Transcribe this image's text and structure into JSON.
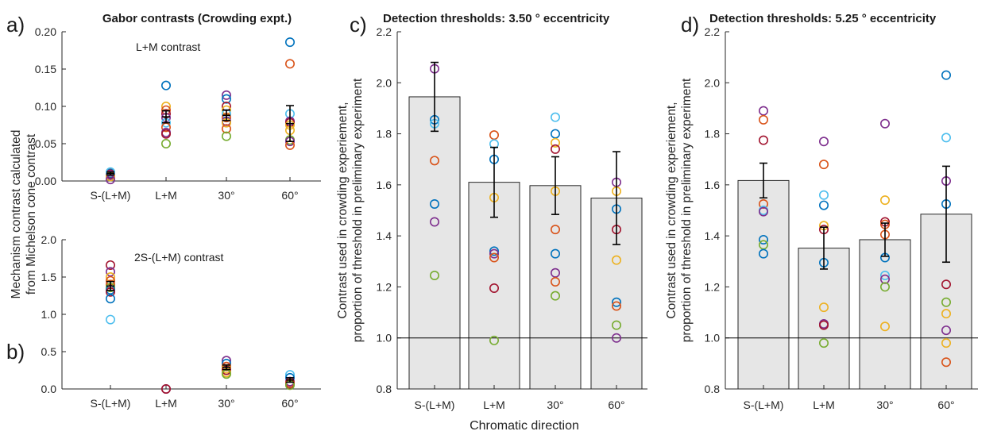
{
  "colors": {
    "c1": "#0072bd",
    "c2": "#d95319",
    "c3": "#edb120",
    "c4": "#7e2f8e",
    "c5": "#77ac30",
    "c6": "#4dbeee",
    "c7": "#a2142f",
    "bar": "#e6e6e6"
  },
  "figure": {
    "panel_a_letter": "a)",
    "panel_b_letter": "b)",
    "panel_c_letter": "c)",
    "panel_d_letter": "d)",
    "panel_ab_title": "Gabor contrasts (Crowding expt.)",
    "panel_ab_ylabel_line1": "Mechanism contrast calculated",
    "panel_ab_ylabel_line2": "from Michelson cone contrast",
    "panel_a_annotation": "L+M contrast",
    "panel_b_annotation": "2S-(L+M) contrast",
    "panel_cd_ylabel_line1": "Contrast used in crowding experiement,",
    "panel_cd_ylabel_line2": "proportion of threshold in preliminary experiment",
    "panel_cd_xlabel": "Chromatic direction"
  },
  "chart_data": [
    {
      "id": "a",
      "type": "scatter",
      "title": "Gabor contrasts (Crowding expt.)",
      "annotation": "L+M contrast",
      "categories": [
        "S-(L+M)",
        "L+M",
        "30°",
        "60°"
      ],
      "ylim": [
        0,
        0.2
      ],
      "yticks": [
        "0.00",
        "0.05",
        "0.10",
        "0.15",
        "0.20"
      ],
      "points": [
        [
          0.011,
          0.01,
          0.009,
          0.008,
          0.006,
          0.012,
          0.002
        ],
        [
          0.128,
          0.1,
          0.095,
          0.09,
          0.085,
          0.078,
          0.072,
          0.065,
          0.063,
          0.05
        ],
        [
          0.115,
          0.11,
          0.1,
          0.095,
          0.09,
          0.085,
          0.08,
          0.078,
          0.07,
          0.06
        ],
        [
          0.186,
          0.157,
          0.09,
          0.08,
          0.078,
          0.075,
          0.055,
          0.053,
          0.048,
          0.068
        ]
      ],
      "point_colors": [
        [
          "c2",
          "c1",
          "c7",
          "c4",
          "c3",
          "c6",
          "c4"
        ],
        [
          "c1",
          "c3",
          "c2",
          "c7",
          "c4",
          "c6",
          "c2",
          "c4",
          "c7",
          "c5"
        ],
        [
          "c4",
          "c1",
          "c7",
          "c3",
          "c6",
          "c2",
          "c4",
          "c3",
          "c2",
          "c5"
        ],
        [
          "c1",
          "c2",
          "c6",
          "c4",
          "c7",
          "c3",
          "c5",
          "c4",
          "c2",
          "c3"
        ]
      ],
      "means": [
        0.01,
        0.086,
        0.088,
        0.077
      ],
      "errors": [
        0.002,
        0.008,
        0.007,
        0.024
      ]
    },
    {
      "id": "b",
      "type": "scatter",
      "annotation": "2S-(L+M) contrast",
      "categories": [
        "S-(L+M)",
        "L+M",
        "30°",
        "60°"
      ],
      "ylim": [
        0,
        2
      ],
      "yticks": [
        "0.0",
        "0.5",
        "1.0",
        "1.5",
        "2.0"
      ],
      "points": [
        [
          1.66,
          1.57,
          1.5,
          1.45,
          1.4,
          1.36,
          1.33,
          1.3,
          1.21,
          0.93
        ],
        [
          0.0,
          0.0
        ],
        [
          0.38,
          0.34,
          0.3,
          0.27,
          0.25,
          0.22,
          0.2
        ],
        [
          0.19,
          0.15,
          0.1,
          0.08,
          0.06,
          0.05
        ]
      ],
      "point_colors": [
        [
          "c7",
          "c4",
          "c3",
          "c2",
          "c2",
          "c5",
          "c1",
          "c7",
          "c1",
          "c6"
        ],
        [
          "c4",
          "c7"
        ],
        [
          "c4",
          "c1",
          "c2",
          "c3",
          "c7",
          "c3",
          "c5"
        ],
        [
          "c6",
          "c1",
          "c4",
          "c2",
          "c7",
          "c5"
        ]
      ],
      "means": [
        1.38,
        0.0,
        0.29,
        0.12
      ],
      "errors": [
        0.06,
        0.0,
        0.03,
        0.03
      ]
    },
    {
      "id": "c",
      "type": "bar",
      "title": "Detection thresholds: 3.50 ° eccentricity",
      "xlabel": "Chromatic direction",
      "categories": [
        "S-(L+M)",
        "L+M",
        "30°",
        "60°"
      ],
      "ylim": [
        0.8,
        2.2
      ],
      "yticks": [
        "0.8",
        "1.0",
        "1.2",
        "1.4",
        "1.6",
        "1.8",
        "2.0",
        "2.2"
      ],
      "refline": 1.0,
      "values": [
        1.945,
        1.61,
        1.597,
        1.548
      ],
      "errors": [
        0.135,
        0.137,
        0.113,
        0.182
      ],
      "points": [
        [
          2.055,
          1.855,
          1.84,
          1.695,
          1.525,
          1.455,
          1.245
        ],
        [
          1.795,
          1.76,
          1.7,
          1.55,
          1.34,
          1.33,
          1.315,
          1.195,
          0.99
        ],
        [
          1.865,
          1.8,
          1.765,
          1.74,
          1.575,
          1.425,
          1.33,
          1.255,
          1.22,
          1.165
        ],
        [
          1.61,
          1.575,
          1.505,
          1.425,
          1.305,
          1.14,
          1.125,
          1.05,
          1.0
        ]
      ],
      "point_colors": [
        [
          "c4",
          "c1",
          "c6",
          "c2",
          "c1",
          "c4",
          "c5"
        ],
        [
          "c2",
          "c6",
          "c1",
          "c3",
          "c1",
          "c4",
          "c2",
          "c7",
          "c5"
        ],
        [
          "c6",
          "c1",
          "c3",
          "c7",
          "c3",
          "c2",
          "c1",
          "c4",
          "c2",
          "c5"
        ],
        [
          "c4",
          "c3",
          "c1",
          "c7",
          "c3",
          "c1",
          "c2",
          "c5",
          "c4"
        ]
      ]
    },
    {
      "id": "d",
      "type": "bar",
      "title": "Detection thresholds: 5.25 ° eccentricity",
      "categories": [
        "S-(L+M)",
        "L+M",
        "30°",
        "60°"
      ],
      "ylim": [
        0.8,
        2.2
      ],
      "yticks": [
        "0.8",
        "1.0",
        "1.2",
        "1.4",
        "1.6",
        "1.8",
        "2.0",
        "2.2"
      ],
      "refline": 1.0,
      "values": [
        1.617,
        1.352,
        1.385,
        1.485
      ],
      "errors": [
        0.068,
        0.082,
        0.065,
        0.188
      ],
      "points": [
        [
          1.89,
          1.855,
          1.775,
          1.525,
          1.5,
          1.495,
          1.385,
          1.365,
          1.33
        ],
        [
          1.77,
          1.68,
          1.56,
          1.52,
          1.44,
          1.425,
          1.295,
          1.12,
          1.055,
          1.05,
          0.98
        ],
        [
          1.84,
          1.54,
          1.455,
          1.445,
          1.405,
          1.315,
          1.245,
          1.23,
          1.2,
          1.045
        ],
        [
          2.03,
          1.785,
          1.615,
          1.525,
          1.21,
          1.14,
          1.095,
          1.03,
          0.98,
          0.905
        ]
      ],
      "point_colors": [
        [
          "c4",
          "c2",
          "c7",
          "c2",
          "c6",
          "c4",
          "c1",
          "c5",
          "c1"
        ],
        [
          "c4",
          "c2",
          "c6",
          "c1",
          "c3",
          "c7",
          "c1",
          "c3",
          "c4",
          "c7",
          "c5"
        ],
        [
          "c4",
          "c3",
          "c7",
          "c2",
          "c2",
          "c1",
          "c6",
          "c4",
          "c5",
          "c3"
        ],
        [
          "c1",
          "c6",
          "c4",
          "c1",
          "c7",
          "c5",
          "c3",
          "c4",
          "c3",
          "c2"
        ]
      ]
    }
  ]
}
